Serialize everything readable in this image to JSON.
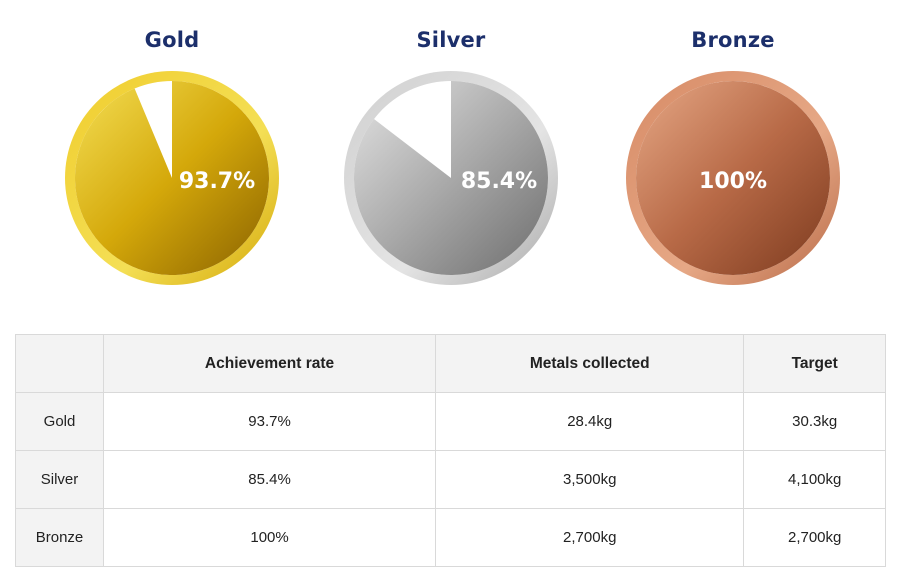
{
  "chart_data": {
    "type": "pie",
    "medals": [
      {
        "name": "Gold",
        "value": 93.7,
        "label": "93.7%",
        "colors": {
          "light": "#f4df55",
          "mid": "#d4a80a",
          "dark": "#8a6200",
          "rim": "#f0cd2e"
        }
      },
      {
        "name": "Silver",
        "value": 85.4,
        "label": "85.4%",
        "colors": {
          "light": "#e4e4e4",
          "mid": "#a9a9a9",
          "dark": "#6d6d6d",
          "rim": "#d0d0d0"
        }
      },
      {
        "name": "Bronze",
        "value": 100,
        "label": "100%",
        "colors": {
          "light": "#e6a886",
          "mid": "#b86a47",
          "dark": "#7c3a1e",
          "rim": "#d78b66"
        }
      }
    ]
  },
  "table": {
    "headers": [
      "",
      "Achievement rate",
      "Metals collected",
      "Target"
    ],
    "rows": [
      {
        "medal": "Gold",
        "rate": "93.7%",
        "collected": "28.4kg",
        "target": "30.3kg"
      },
      {
        "medal": "Silver",
        "rate": "85.4%",
        "collected": "3,500kg",
        "target": "4,100kg"
      },
      {
        "medal": "Bronze",
        "rate": "100%",
        "collected": "2,700kg",
        "target": "2,700kg"
      }
    ]
  }
}
